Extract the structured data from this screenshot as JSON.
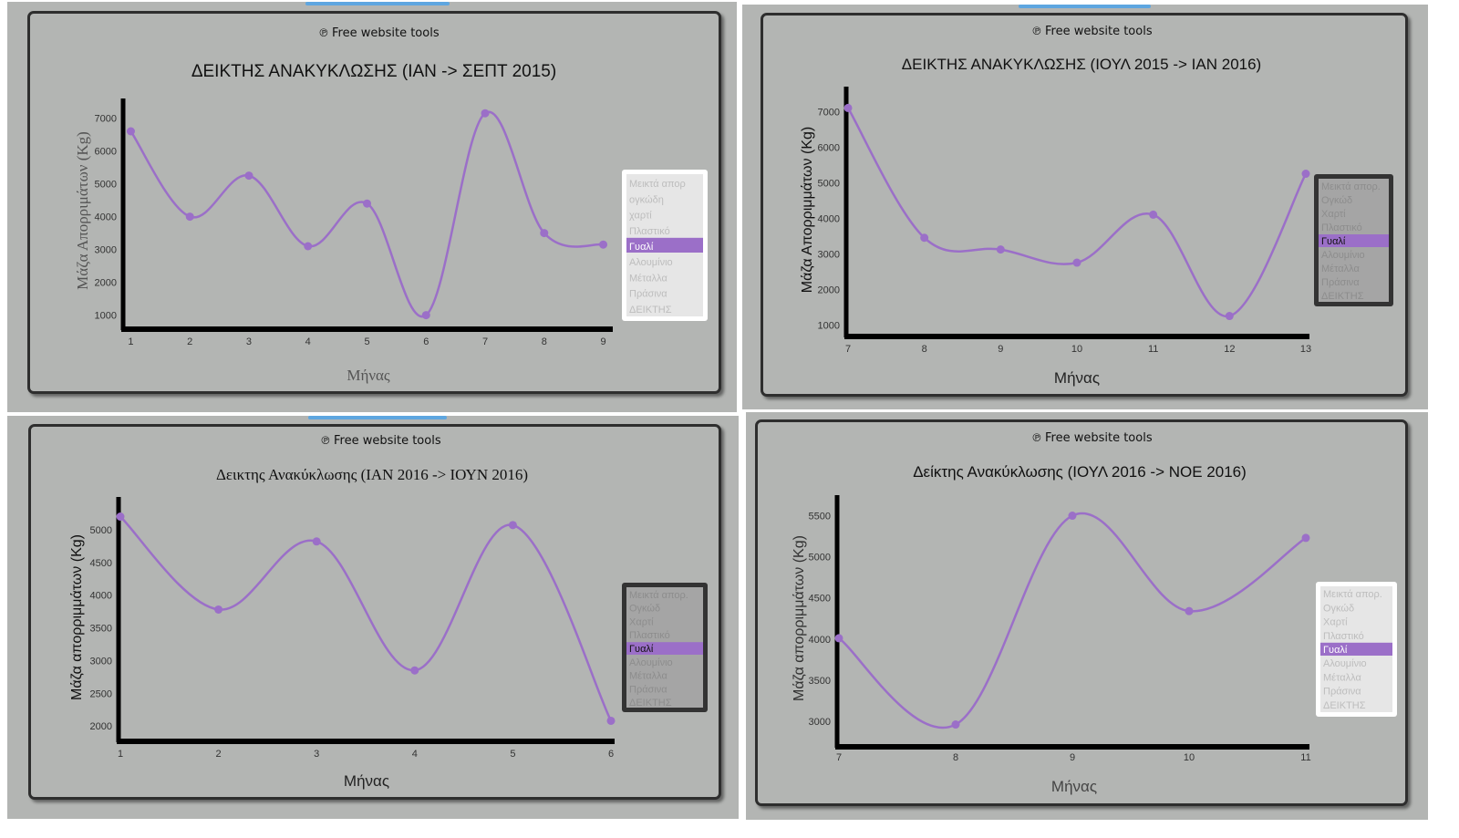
{
  "credit_text": "Free website tools",
  "legend_items": [
    "Μεικτά απορ",
    "ογκώδη",
    "χαρτί",
    "Πλαστικό",
    "Γυαλί",
    "Αλουμίνιο",
    "Μέταλλα",
    "Πράσινα",
    "ΔΕΙΚΤΗΣ"
  ],
  "legend_items_alt": [
    "Μεικτά απορ.",
    "Ογκώδ",
    "Χαρτί",
    "Πλαστικό",
    "Γυαλί",
    "Αλουμίνιο",
    "Μέταλλα",
    "Πράσινα",
    "ΔΕΙΚΤΗΣ"
  ],
  "colors": {
    "line": "#9b6fc8",
    "selected": "#9b6fc8",
    "panel": "#b3b5b3",
    "axis": "#000000"
  },
  "icons": {
    "credit": "ear-icon"
  },
  "chart_data": [
    {
      "type": "line",
      "title": "ΔΕΙΚΤΗΣ ΑΝΑΚΥΚΛΩΣΗΣ (ΙΑΝ -> ΣΕΠΤ 2015)",
      "xlabel": "Μήνας",
      "ylabel": "Μάζα Απορριμάτων (Kg)",
      "x": [
        1,
        2,
        3,
        4,
        5,
        6,
        7,
        8,
        9
      ],
      "y": [
        6600,
        4000,
        5250,
        3100,
        4400,
        1000,
        7150,
        3500,
        3150
      ],
      "yticks": [
        1000,
        2000,
        3000,
        4000,
        5000,
        6000,
        7000
      ],
      "ylim": [
        600,
        7600
      ],
      "xlim": [
        0.9,
        9.1
      ],
      "legend_selected": "Γυαλί",
      "legend_placement": "right"
    },
    {
      "type": "line",
      "title": "ΔΕΙΚΤΗΣ ΑΝΑΚΥΚΛΩΣΗΣ (ΙΟΥΛ 2015 -> ΙΑΝ 2016)",
      "xlabel": "Μήνας",
      "ylabel": "Μάζα Απορριμμάτων (Kg)",
      "x": [
        7,
        8,
        9,
        10,
        11,
        12,
        13
      ],
      "y": [
        7100,
        3450,
        3120,
        2750,
        4100,
        1250,
        5250
      ],
      "yticks": [
        1000,
        2000,
        3000,
        4000,
        5000,
        6000,
        7000
      ],
      "ylim": [
        700,
        7700
      ],
      "xlim": [
        7,
        13
      ],
      "legend_selected": "Γυαλί",
      "legend_placement": "right"
    },
    {
      "type": "line",
      "title": "Δεικτης Ανακύκλωσης (ΙΑΝ 2016 -> ΙΟΥΝ 2016)",
      "xlabel": "Μήνας",
      "ylabel": "Μάζα απορριμμάτων (Kg)",
      "x": [
        1,
        2,
        3,
        4,
        5,
        6
      ],
      "y": [
        5200,
        3780,
        4820,
        2850,
        5070,
        2080
      ],
      "yticks": [
        2000,
        2500,
        3000,
        3500,
        4000,
        4500,
        5000
      ],
      "ylim": [
        1780,
        5500
      ],
      "xlim": [
        1,
        6
      ],
      "legend_selected": "Γυαλί",
      "legend_placement": "right"
    },
    {
      "type": "line",
      "title": "Δείκτης Ανακύκλωσης (ΙΟΥΛ 2016 -> ΝΟΕ 2016)",
      "xlabel": "Μήνας",
      "ylabel": "Μάζα απορριμμάτων (Kg)",
      "x": [
        7,
        8,
        9,
        10,
        11
      ],
      "y": [
        4010,
        2960,
        5500,
        4340,
        5230
      ],
      "yticks": [
        3000,
        3500,
        4000,
        4500,
        5000,
        5500
      ],
      "ylim": [
        2700,
        5750
      ],
      "xlim": [
        7,
        11
      ],
      "legend_selected": "Γυαλί",
      "legend_placement": "right"
    }
  ]
}
